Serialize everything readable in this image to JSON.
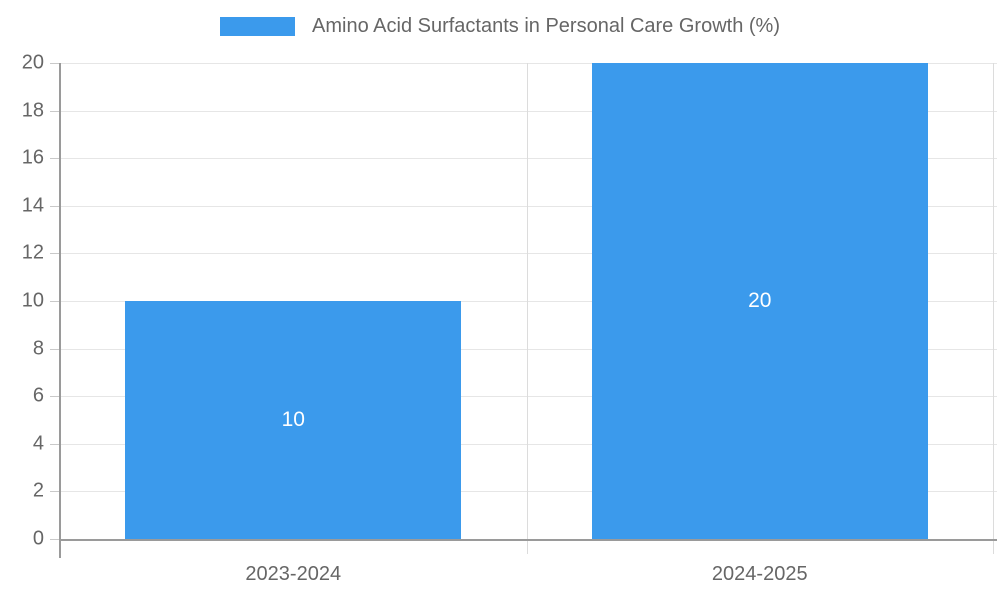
{
  "legend": {
    "label": "Amino Acid Surfactants in Personal Care Growth (%)",
    "position": "top"
  },
  "chart_data": {
    "type": "bar",
    "title": "Amino Acid Surfactants in Personal Care Growth (%)",
    "categories": [
      "2023-2024",
      "2024-2025"
    ],
    "values": [
      10,
      20
    ],
    "value_labels": [
      "10",
      "20"
    ],
    "xlabel": "",
    "ylabel": "",
    "ylim": [
      0,
      20
    ],
    "yticks": [
      0,
      2,
      4,
      6,
      8,
      10,
      12,
      14,
      16,
      18,
      20
    ],
    "grid": true,
    "legend_position": "top-center"
  },
  "colors": {
    "bar": "#3B9AEC",
    "grid": "#e6e6e6",
    "tick": "#c9c9c9",
    "boundary": "#dcdcdc",
    "axis": "#9a9a9a",
    "text": "#666666",
    "value_label": "#ffffff",
    "background": "#ffffff"
  }
}
